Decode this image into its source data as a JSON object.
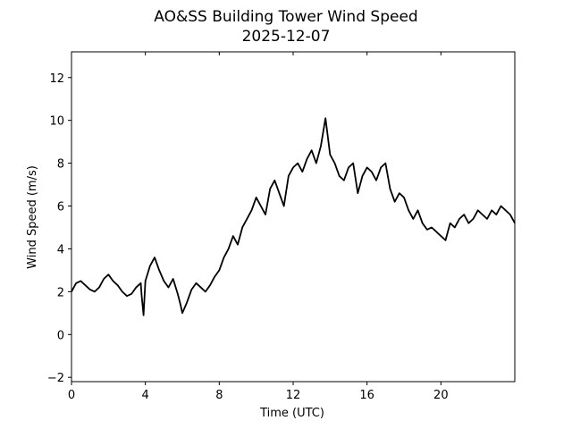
{
  "chart_data": {
    "type": "line",
    "title": "AO&SS Building Tower Wind Speed",
    "subtitle": "2025-12-07",
    "xlabel": "Time (UTC)",
    "ylabel": "Wind Speed (m/s)",
    "xlim": [
      0,
      24
    ],
    "ylim": [
      -2.2,
      13.2
    ],
    "xticks": [
      0,
      4,
      8,
      12,
      16,
      20
    ],
    "yticks": [
      -2,
      0,
      2,
      4,
      6,
      8,
      10,
      12
    ],
    "grid": false,
    "series": [
      {
        "color": "#000000",
        "x": [
          0.0,
          0.25,
          0.5,
          0.75,
          1.0,
          1.25,
          1.5,
          1.75,
          2.0,
          2.25,
          2.5,
          2.75,
          3.0,
          3.25,
          3.5,
          3.75,
          3.8,
          3.9,
          4.0,
          4.25,
          4.5,
          4.75,
          5.0,
          5.25,
          5.5,
          5.75,
          5.9,
          6.0,
          6.25,
          6.5,
          6.75,
          7.0,
          7.25,
          7.5,
          7.75,
          8.0,
          8.25,
          8.5,
          8.75,
          9.0,
          9.25,
          9.5,
          9.75,
          10.0,
          10.25,
          10.5,
          10.75,
          11.0,
          11.25,
          11.5,
          11.75,
          12.0,
          12.25,
          12.5,
          12.75,
          13.0,
          13.25,
          13.5,
          13.75,
          14.0,
          14.25,
          14.5,
          14.75,
          15.0,
          15.25,
          15.5,
          15.75,
          16.0,
          16.25,
          16.5,
          16.75,
          17.0,
          17.25,
          17.5,
          17.75,
          18.0,
          18.25,
          18.5,
          18.75,
          19.0,
          19.25,
          19.5,
          19.75,
          20.0,
          20.25,
          20.5,
          20.75,
          21.0,
          21.25,
          21.5,
          21.75,
          22.0,
          22.25,
          22.5,
          22.75,
          23.0,
          23.25,
          23.5,
          23.75,
          24.0
        ],
        "values": [
          2.0,
          2.4,
          2.5,
          2.3,
          2.1,
          2.0,
          2.2,
          2.6,
          2.8,
          2.5,
          2.3,
          2.0,
          1.8,
          1.9,
          2.2,
          2.4,
          1.8,
          0.9,
          2.5,
          3.2,
          3.6,
          3.0,
          2.5,
          2.2,
          2.6,
          1.9,
          1.4,
          1.0,
          1.5,
          2.1,
          2.4,
          2.2,
          2.0,
          2.3,
          2.7,
          3.0,
          3.6,
          4.0,
          4.6,
          4.2,
          5.0,
          5.4,
          5.8,
          6.4,
          6.0,
          5.6,
          6.8,
          7.2,
          6.6,
          6.0,
          7.4,
          7.8,
          8.0,
          7.6,
          8.2,
          8.6,
          8.0,
          8.8,
          10.1,
          8.4,
          8.0,
          7.4,
          7.2,
          7.8,
          8.0,
          6.6,
          7.4,
          7.8,
          7.6,
          7.2,
          7.8,
          8.0,
          6.8,
          6.2,
          6.6,
          6.4,
          5.8,
          5.4,
          5.8,
          5.2,
          4.9,
          5.0,
          4.8,
          4.6,
          4.4,
          5.2,
          5.0,
          5.4,
          5.6,
          5.2,
          5.4,
          5.8,
          5.6,
          5.4,
          5.8,
          5.6,
          6.0,
          5.8,
          5.6,
          5.2
        ]
      }
    ]
  }
}
